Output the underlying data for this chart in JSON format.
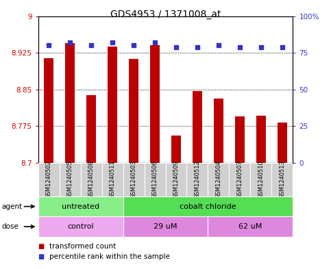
{
  "title": "GDS4953 / 1371008_at",
  "samples": [
    "GSM1240502",
    "GSM1240505",
    "GSM1240508",
    "GSM1240511",
    "GSM1240503",
    "GSM1240506",
    "GSM1240509",
    "GSM1240512",
    "GSM1240504",
    "GSM1240507",
    "GSM1240510",
    "GSM1240513"
  ],
  "transformed_counts": [
    8.914,
    8.945,
    8.838,
    8.938,
    8.913,
    8.94,
    8.755,
    8.847,
    8.832,
    8.795,
    8.797,
    8.782
  ],
  "percentile_ranks": [
    80,
    82,
    80,
    82,
    80,
    82,
    79,
    79,
    80,
    79,
    79,
    79
  ],
  "ylim_left": [
    8.7,
    9.0
  ],
  "ylim_right": [
    0,
    100
  ],
  "yticks_left": [
    8.7,
    8.775,
    8.85,
    8.925,
    9.0
  ],
  "yticks_right": [
    0,
    25,
    50,
    75,
    100
  ],
  "ytick_labels_left": [
    "8.7",
    "8.775",
    "8.85",
    "8.925",
    "9"
  ],
  "ytick_labels_right": [
    "0",
    "25",
    "50",
    "75",
    "100%"
  ],
  "bar_color": "#bb0000",
  "dot_color": "#3333cc",
  "agent_groups": [
    {
      "label": "untreated",
      "start": 0,
      "end": 4,
      "color": "#88ee88"
    },
    {
      "label": "cobalt chloride",
      "start": 4,
      "end": 12,
      "color": "#55dd55"
    }
  ],
  "dose_groups": [
    {
      "label": "control",
      "start": 0,
      "end": 4,
      "color": "#eeaaee"
    },
    {
      "label": "29 uM",
      "start": 4,
      "end": 8,
      "color": "#dd88dd"
    },
    {
      "label": "62 uM",
      "start": 8,
      "end": 12,
      "color": "#dd88dd"
    }
  ],
  "legend_items": [
    {
      "color": "#bb0000",
      "label": "transformed count"
    },
    {
      "color": "#3333cc",
      "label": "percentile rank within the sample"
    }
  ],
  "bar_width": 0.45,
  "ybase": 8.7,
  "grid_color": "#000000",
  "axis_color_left": "#cc0000",
  "axis_color_right": "#3333cc",
  "sample_box_color": "#d0d0d0",
  "agent_label": "agent",
  "dose_label": "dose",
  "title_fontsize": 10,
  "tick_fontsize": 7.5,
  "sample_fontsize": 6,
  "group_fontsize": 8,
  "legend_fontsize": 7.5
}
